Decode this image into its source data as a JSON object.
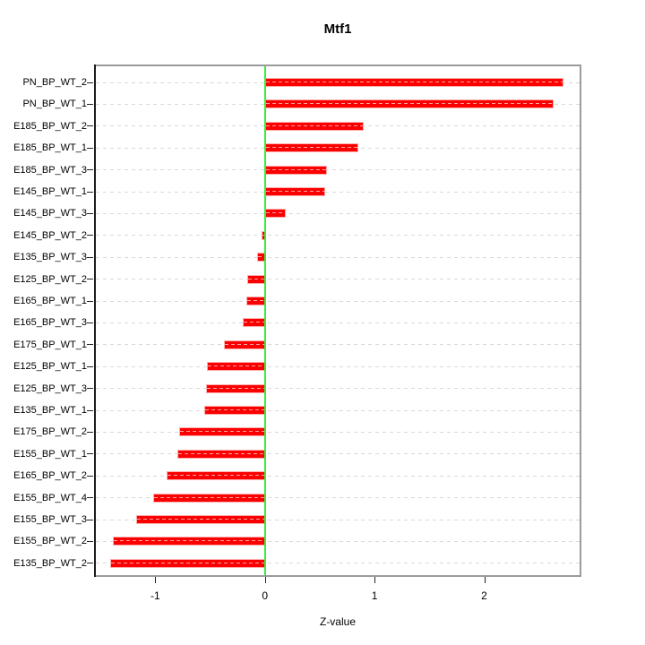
{
  "chart_data": {
    "type": "bar",
    "orientation": "horizontal",
    "title": "Mtf1",
    "xlabel": "Z-value",
    "ylabel": "",
    "xlim": [
      -1.56,
      2.89
    ],
    "xticks": [
      -1,
      0,
      1,
      2
    ],
    "xtick_labels": [
      "-1",
      "0",
      "1",
      "2"
    ],
    "grid": "dashed horizontal reference line per category",
    "legend": "none",
    "zero_reference_line": 0,
    "categories": [
      "PN_BP_WT_2",
      "PN_BP_WT_1",
      "E185_BP_WT_2",
      "E185_BP_WT_1",
      "E185_BP_WT_3",
      "E145_BP_WT_1",
      "E145_BP_WT_3",
      "E145_BP_WT_2",
      "E135_BP_WT_3",
      "E125_BP_WT_2",
      "E165_BP_WT_1",
      "E165_BP_WT_3",
      "E175_BP_WT_1",
      "E125_BP_WT_1",
      "E125_BP_WT_3",
      "E135_BP_WT_1",
      "E175_BP_WT_2",
      "E155_BP_WT_1",
      "E165_BP_WT_2",
      "E155_BP_WT_4",
      "E155_BP_WT_3",
      "E155_BP_WT_2",
      "E135_BP_WT_2"
    ],
    "values": [
      2.72,
      2.63,
      0.9,
      0.85,
      0.57,
      0.55,
      0.19,
      -0.03,
      -0.07,
      -0.16,
      -0.17,
      -0.2,
      -0.37,
      -0.53,
      -0.54,
      -0.55,
      -0.78,
      -0.8,
      -0.9,
      -1.02,
      -1.17,
      -1.39,
      -1.41
    ],
    "colors": {
      "bar_fill": "#fb0000",
      "bar_border": "#ffacac",
      "bar_inner_dash": "#ffa3a3",
      "gridline": "#d9d9d9",
      "zero_line": "#35ee35",
      "frame": "#9b9b9b",
      "axis": "#1c1c1c",
      "background": "#ffffff"
    }
  }
}
